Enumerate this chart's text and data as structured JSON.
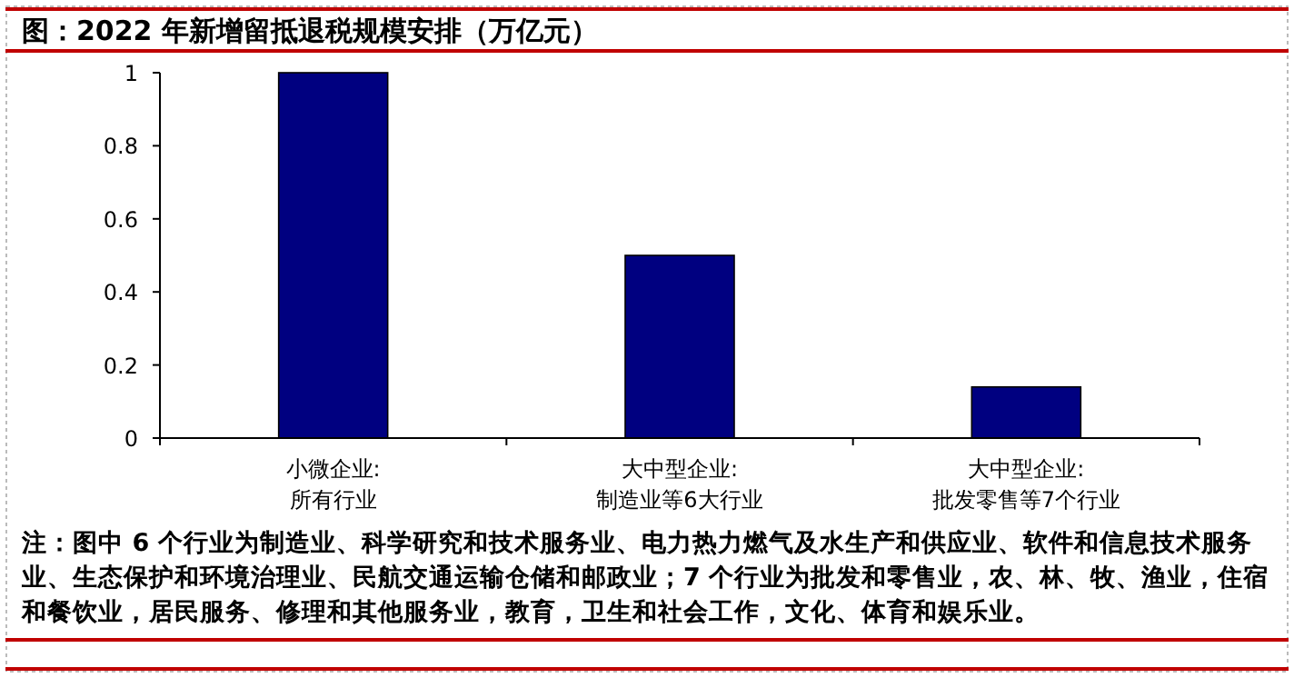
{
  "chart_data": {
    "type": "bar",
    "title": "图：2022 年新增留抵退税规模安排（万亿元）",
    "categories": [
      "小微企业:\n所有行业",
      "大中型企业:\n制造业等6大行业",
      "大中型企业:\n批发零售等7个行业"
    ],
    "values": [
      1,
      0.5,
      0.14
    ],
    "color": "#000080",
    "ylim": [
      0,
      1
    ],
    "yticks": [
      0,
      {
        "value": 0.2,
        "label": "0.2"
      },
      {
        "value": 0.4,
        "label": "0.4"
      },
      {
        "value": 0.6,
        "label": "0.6"
      },
      {
        "value": 0.8,
        "label": "0.8"
      },
      1
    ],
    "grid": false,
    "annotations": [
      "注：图中 6 个行业为制造业、科学研究和技术服务业、电力热力燃气及水生产和供应业、软件和信息技术服务业、生态保护和环境治理业、民航交通运输仓储和邮政业；7 个行业为批发和零售业，农、林、牧、渔业，住宿和餐饮业，居民服务、修理和其他服务业，教育，卫生和社会工作，文化、体育和娱乐业。"
    ]
  }
}
